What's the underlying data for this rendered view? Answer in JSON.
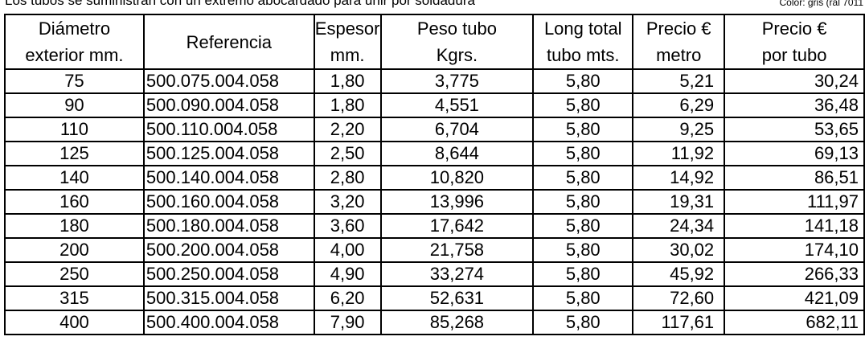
{
  "note_left": "Los tubos se suministran con un extremo abocardado para unir por soldadura",
  "note_right": "Color: gris (ral 7011",
  "table": {
    "header": [
      [
        "Diámetro",
        "exterior mm."
      ],
      [
        "Referencia"
      ],
      [
        "Espesor",
        "mm."
      ],
      [
        "Peso tubo",
        "Kgrs."
      ],
      [
        "Long total",
        "tubo mts."
      ],
      [
        "Precio €",
        "metro"
      ],
      [
        "Precio €",
        "por tubo"
      ]
    ],
    "rows": [
      [
        "75",
        "500.075.004.058",
        "1,80",
        "3,775",
        "5,80",
        "5,21",
        "30,24"
      ],
      [
        "90",
        "500.090.004.058",
        "1,80",
        "4,551",
        "5,80",
        "6,29",
        "36,48"
      ],
      [
        "110",
        "500.110.004.058",
        "2,20",
        "6,704",
        "5,80",
        "9,25",
        "53,65"
      ],
      [
        "125",
        "500.125.004.058",
        "2,50",
        "8,644",
        "5,80",
        "11,92",
        "69,13"
      ],
      [
        "140",
        "500.140.004.058",
        "2,80",
        "10,820",
        "5,80",
        "14,92",
        "86,51"
      ],
      [
        "160",
        "500.160.004.058",
        "3,20",
        "13,996",
        "5,80",
        "19,31",
        "111,97"
      ],
      [
        "180",
        "500.180.004.058",
        "3,60",
        "17,642",
        "5,80",
        "24,34",
        "141,18"
      ],
      [
        "200",
        "500.200.004.058",
        "4,00",
        "21,758",
        "5,80",
        "30,02",
        "174,10"
      ],
      [
        "250",
        "500.250.004.058",
        "4,90",
        "33,274",
        "5,80",
        "45,92",
        "266,33"
      ],
      [
        "315",
        "500.315.004.058",
        "6,20",
        "52,631",
        "5,80",
        "72,60",
        "421,09"
      ],
      [
        "400",
        "500.400.004.058",
        "7,90",
        "85,268",
        "5,80",
        "117,61",
        "682,11"
      ]
    ]
  }
}
